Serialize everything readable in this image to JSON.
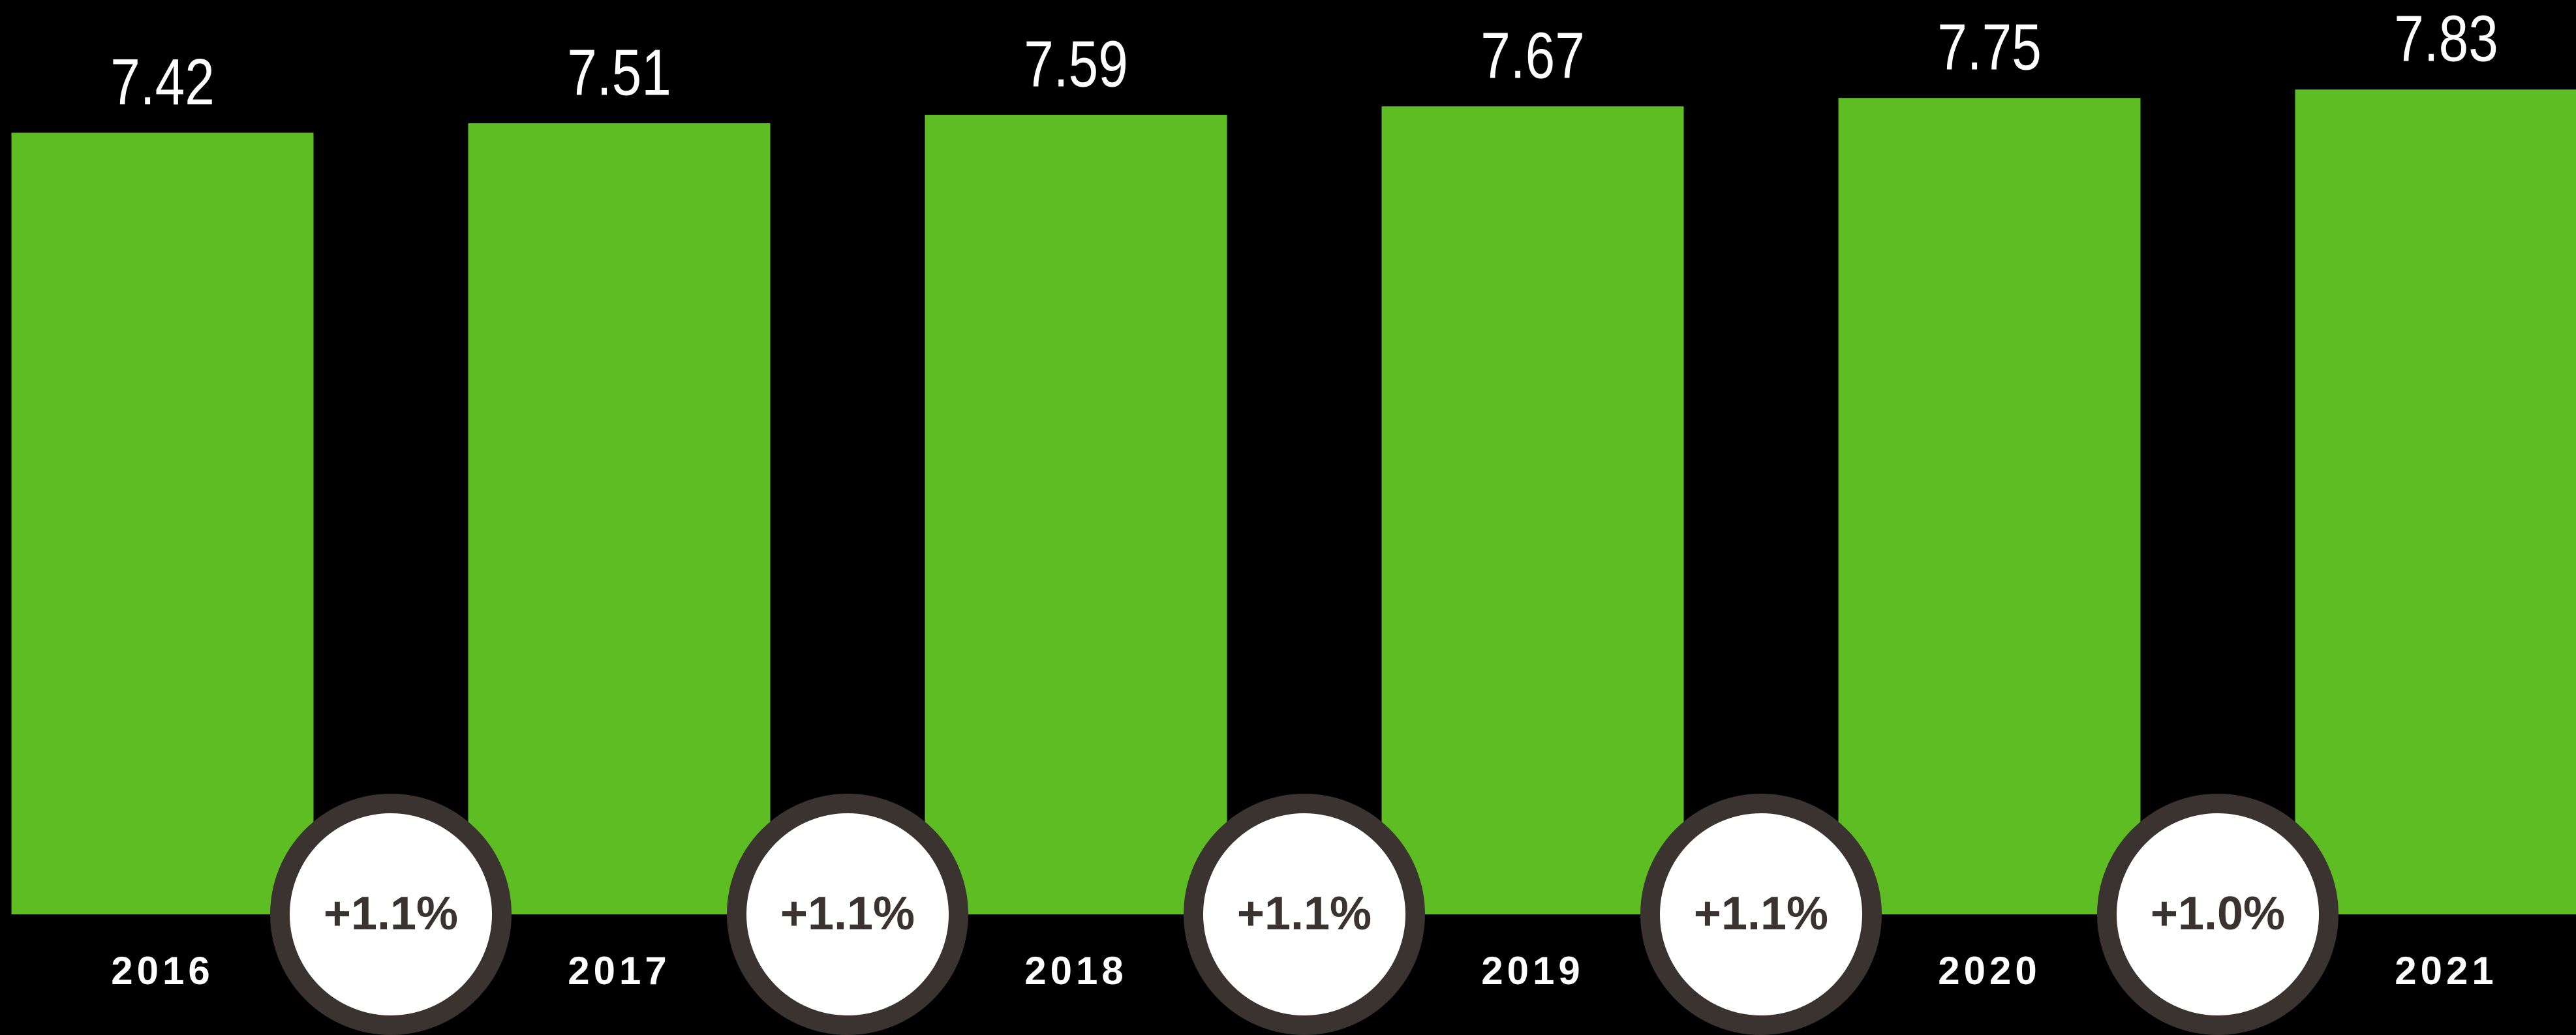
{
  "chart_data": {
    "type": "bar",
    "categories": [
      "2016",
      "2017",
      "2018",
      "2019",
      "2020",
      "2021"
    ],
    "values": [
      7.42,
      7.51,
      7.59,
      7.67,
      7.75,
      7.83
    ],
    "color": "#5fbd24",
    "ylim": [
      0,
      8.68
    ],
    "grid": false,
    "annotations": [
      "+1.1%",
      "+1.1%",
      "+1.1%",
      "+1.1%",
      "+1.0%"
    ]
  }
}
